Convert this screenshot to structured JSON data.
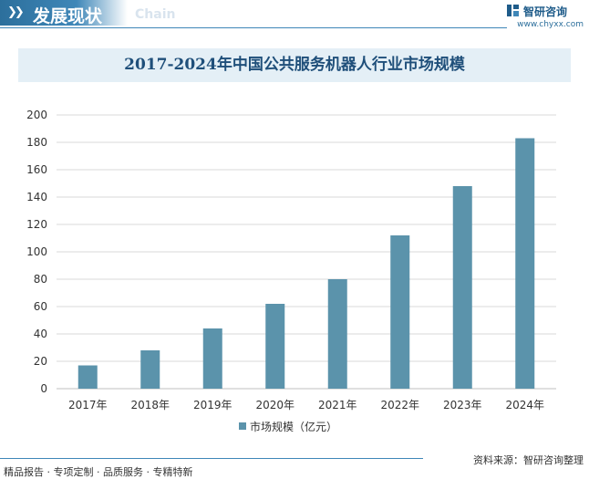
{
  "header": {
    "title": "发展现状",
    "subtitle": "Chain",
    "logo_text": "智研咨询",
    "logo_url": "www.chyxx.com"
  },
  "colors": {
    "bar": "#5b93ab",
    "header": "#2c6f9c",
    "title_bg": "#e4eff6",
    "grid": "#d9d9d9"
  },
  "chart_data": {
    "type": "bar",
    "title": "2017-2024年中国公共服务机器人行业市场规模",
    "categories": [
      "2017年",
      "2018年",
      "2019年",
      "2020年",
      "2021年",
      "2022年",
      "2023年",
      "2024年"
    ],
    "series": [
      {
        "name": "市场规模（亿元）",
        "values": [
          17,
          28,
          44,
          62,
          80,
          112,
          148,
          183
        ]
      }
    ],
    "ylim": [
      0,
      200
    ],
    "yticks": [
      0,
      20,
      40,
      60,
      80,
      100,
      120,
      140,
      160,
      180,
      200
    ],
    "grid": true,
    "legend": "bottom"
  },
  "footer": {
    "left": "精品报告 · 专项定制 · 品质服务 · 专精特新",
    "right": "资料来源：智研咨询整理"
  }
}
